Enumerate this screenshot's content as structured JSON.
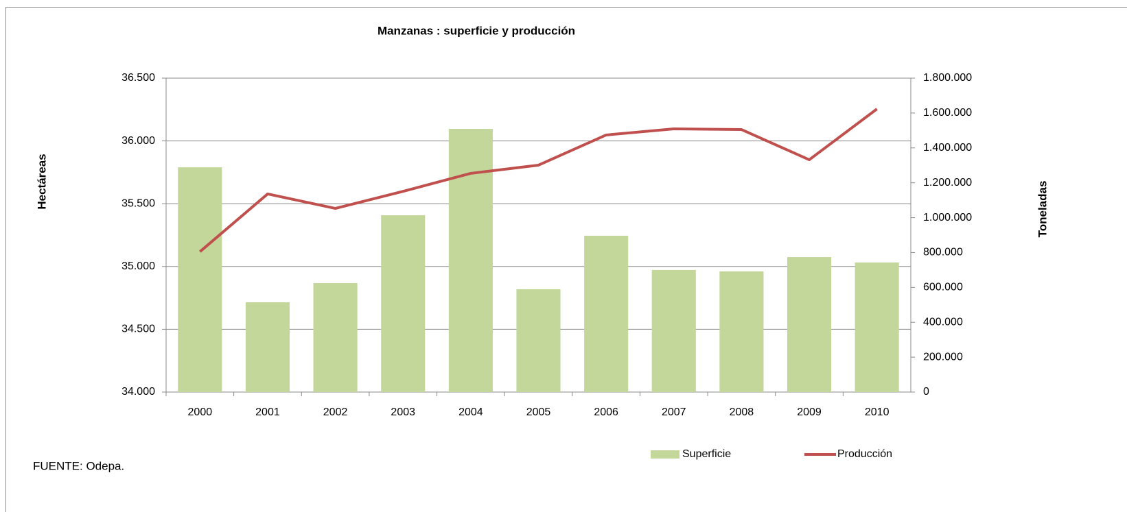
{
  "chart_data": {
    "type": "bar-line",
    "title": "Manzanas : superficie y producción",
    "y_label": "Hectáreas",
    "y2_label": "Toneladas",
    "source": "FUENTE: Odepa.",
    "categories": [
      "2000",
      "2001",
      "2002",
      "2003",
      "2004",
      "2005",
      "2006",
      "2007",
      "2008",
      "2009",
      "2010"
    ],
    "series": [
      {
        "name": "Superficie",
        "type": "bar",
        "color": "#c4d79b",
        "axis": "y",
        "values": [
          35790,
          34715,
          34868,
          35408,
          36096,
          34819,
          35245,
          34972,
          34961,
          35075,
          35032
        ]
      },
      {
        "name": "Producción",
        "type": "line",
        "color": "#c0504d",
        "axis": "y2",
        "values": [
          805000,
          1136000,
          1053000,
          1151000,
          1254000,
          1301000,
          1474000,
          1509000,
          1505000,
          1332000,
          1623000
        ]
      }
    ],
    "ylim": [
      34000,
      36500
    ],
    "yticks": [
      {
        "value": 34000,
        "label": "34.000"
      },
      {
        "value": 34500,
        "label": "34.500"
      },
      {
        "value": 35000,
        "label": "35.000"
      },
      {
        "value": 35500,
        "label": "35.500"
      },
      {
        "value": 36000,
        "label": "36.000"
      },
      {
        "value": 36500,
        "label": "36.500"
      }
    ],
    "y2lim": [
      0,
      1800000
    ],
    "y2ticks": [
      0,
      {
        "value": 200000,
        "label": "200.000"
      },
      {
        "value": 400000,
        "label": "400.000"
      },
      {
        "value": 600000,
        "label": "600.000"
      },
      {
        "value": 800000,
        "label": "800.000"
      },
      {
        "value": 1000000,
        "label": "1.000.000"
      },
      {
        "value": 1200000,
        "label": "1.200.000"
      },
      {
        "value": 1400000,
        "label": "1.400.000"
      },
      {
        "value": 1600000,
        "label": "1.600.000"
      },
      {
        "value": 1800000,
        "label": "1.800.000"
      }
    ],
    "grid": true,
    "legend": "bottom-right"
  }
}
